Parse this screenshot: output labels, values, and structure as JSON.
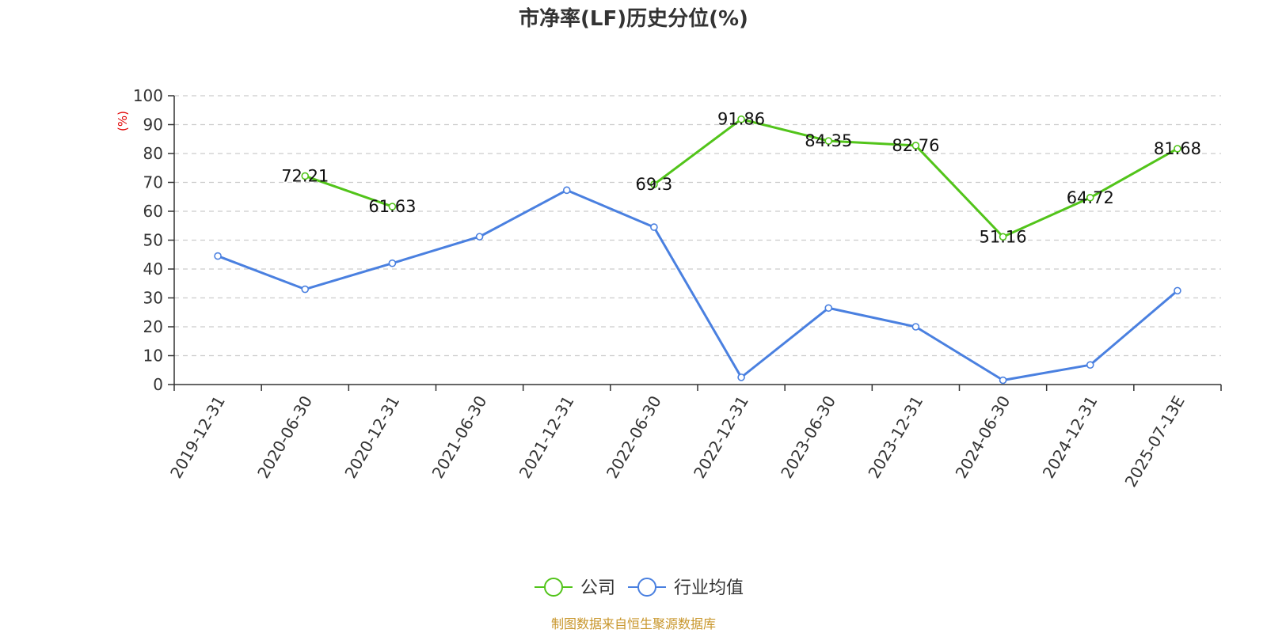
{
  "chart_data": {
    "type": "line",
    "title": "市净率(LF)历史分位(%)",
    "ylabel": "(%)",
    "xlabel": "",
    "ylim": [
      0,
      100
    ],
    "yticks": [
      0,
      10,
      20,
      30,
      40,
      50,
      60,
      70,
      80,
      90,
      100
    ],
    "grid": true,
    "legend_position": "bottom-center",
    "categories": [
      "2019-12-31",
      "2020-06-30",
      "2020-12-31",
      "2021-06-30",
      "2021-12-31",
      "2022-06-30",
      "2022-12-31",
      "2023-06-30",
      "2023-12-31",
      "2024-06-30",
      "2024-12-31",
      "2025-07-13E"
    ],
    "series": [
      {
        "name": "公司",
        "color": "#52c41a",
        "values": [
          null,
          72.21,
          61.63,
          null,
          null,
          69.3,
          91.86,
          84.35,
          82.76,
          51.16,
          64.72,
          81.68
        ],
        "labels": [
          "",
          "72.21",
          "61.63",
          "",
          "",
          "69.3",
          "91.86",
          "84.35",
          "82.76",
          "51.16",
          "64.72",
          "81.68"
        ]
      },
      {
        "name": "行业均值",
        "color": "#4a80e0",
        "values": [
          44.5,
          33,
          42,
          51.2,
          67.3,
          54.5,
          2.5,
          26.5,
          20,
          1.5,
          6.8,
          32.5
        ]
      }
    ],
    "source": "制图数据来自恒生聚源数据库",
    "source_color": "#c8962b",
    "ylabel_color": "#e00000"
  }
}
